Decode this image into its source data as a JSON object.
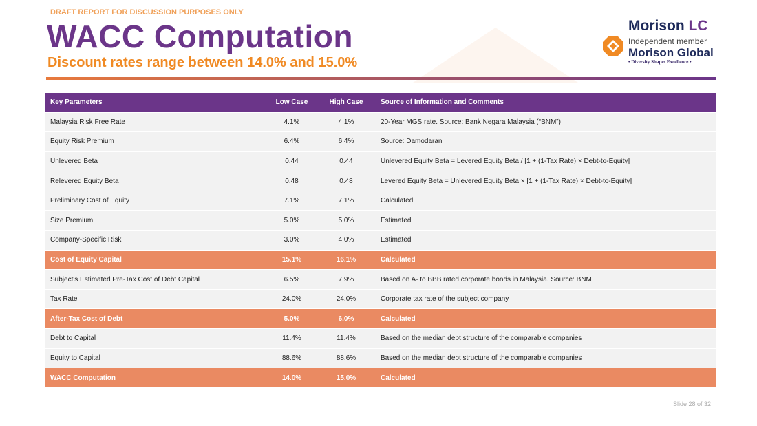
{
  "header": {
    "draft": "DRAFT REPORT FOR DISCUSSION PURPOSES ONLY",
    "title": "WACC Computation",
    "subtitle": "Discount rates range between 14.0% and 15.0%"
  },
  "logo": {
    "name": "Morison ",
    "name_accent": "LC",
    "member": "Independent member",
    "global": "Morison Global",
    "tagline": "• Diversity Shapes Excellence •"
  },
  "table": {
    "columns": [
      "Key Parameters",
      "Low Case",
      "High Case",
      "Source  of Information and Comments"
    ],
    "rows": [
      {
        "p": "Malaysia Risk Free Rate",
        "low": "4.1%",
        "high": "4.1%",
        "src": "20-Year MGS rate. Source: Bank Negara Malaysia (“BNM”)",
        "hl": false
      },
      {
        "p": "Equity Risk Premium",
        "low": "6.4%",
        "high": "6.4%",
        "src": "Source: Damodaran",
        "hl": false
      },
      {
        "p": "Unlevered Beta",
        "low": "0.44",
        "high": "0.44",
        "src": "Unlevered Equity Beta = Levered Equity Beta / [1 + (1-Tax Rate) × Debt-to-Equity]",
        "hl": false
      },
      {
        "p": "Relevered Equity Beta",
        "low": "0.48",
        "high": "0.48",
        "src": "Levered Equity Beta = Unlevered Equity Beta × [1 + (1-Tax Rate) × Debt-to-Equity]",
        "hl": false
      },
      {
        "p": "Preliminary Cost of Equity",
        "low": "7.1%",
        "high": "7.1%",
        "src": "Calculated",
        "hl": false
      },
      {
        "p": "Size Premium",
        "low": "5.0%",
        "high": "5.0%",
        "src": "Estimated",
        "hl": false
      },
      {
        "p": "Company-Specific Risk",
        "low": "3.0%",
        "high": "4.0%",
        "src": "Estimated",
        "hl": false
      },
      {
        "p": "Cost of Equity Capital",
        "low": "15.1%",
        "high": "16.1%",
        "src": "Calculated",
        "hl": true
      },
      {
        "p": "Subject's Estimated Pre-Tax Cost of Debt Capital",
        "low": "6.5%",
        "high": "7.9%",
        "src": "Based on A- to BBB rated corporate bonds in Malaysia. Source: BNM",
        "hl": false
      },
      {
        "p": "Tax Rate",
        "low": "24.0%",
        "high": "24.0%",
        "src": "Corporate tax rate of the subject company",
        "hl": false
      },
      {
        "p": "After-Tax Cost of Debt",
        "low": "5.0%",
        "high": "6.0%",
        "src": "Calculated",
        "hl": true
      },
      {
        "p": "Debt to Capital",
        "low": "11.4%",
        "high": "11.4%",
        "src": "Based on the median debt structure of the comparable companies",
        "hl": false
      },
      {
        "p": "Equity to Capital",
        "low": "88.6%",
        "high": "88.6%",
        "src": "Based on the median debt structure of the comparable companies",
        "hl": false
      },
      {
        "p": "WACC Computation",
        "low": "14.0%",
        "high": "15.0%",
        "src": "Calculated",
        "hl": true
      }
    ]
  },
  "footer": {
    "slide": "Slide 28 of 32"
  }
}
